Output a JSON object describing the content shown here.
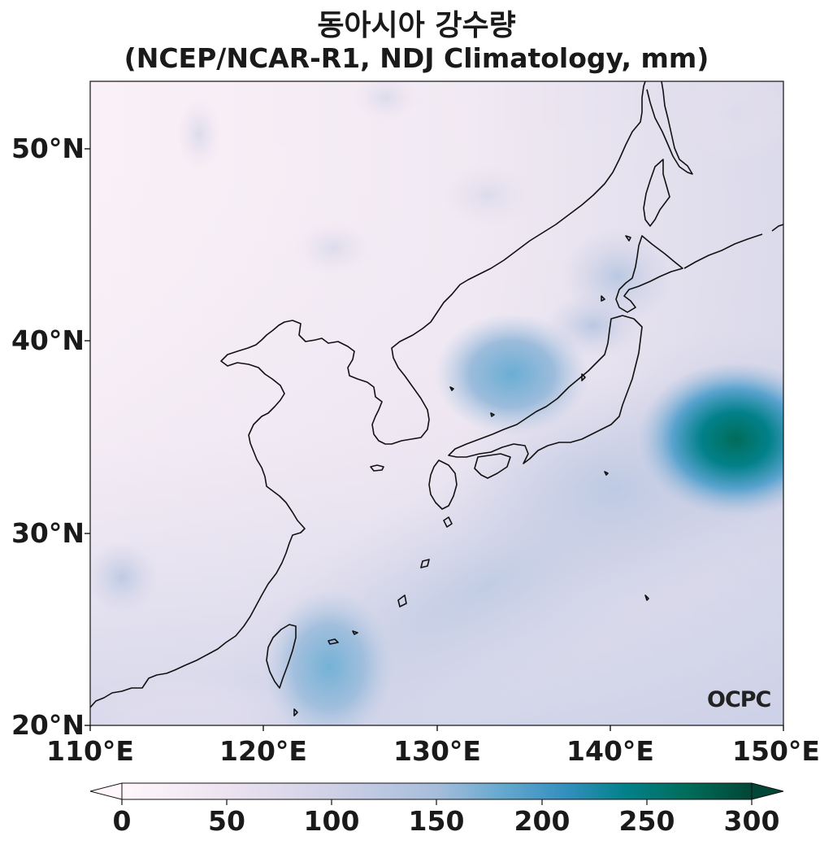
{
  "title": "동아시아 강수량",
  "subtitle": "(NCEP/NCAR-R1, NDJ Climatology, mm)",
  "map": {
    "extent": {
      "lon": [
        110,
        150
      ],
      "lat": [
        20,
        53.5
      ]
    },
    "lat_ticks": [
      {
        "value": 20,
        "label": "20°N"
      },
      {
        "value": 30,
        "label": "30°N"
      },
      {
        "value": 40,
        "label": "40°N"
      },
      {
        "value": 50,
        "label": "50°N"
      }
    ],
    "lon_ticks": [
      {
        "value": 110,
        "label": "110°E"
      },
      {
        "value": 120,
        "label": "120°E"
      },
      {
        "value": 130,
        "label": "130°E"
      },
      {
        "value": 140,
        "label": "140°E"
      },
      {
        "value": 150,
        "label": "150°E"
      }
    ],
    "precip_features": [
      {
        "name": "kuroshio-maximum",
        "lon": 147.5,
        "lat": 35,
        "value_mm": 300
      },
      {
        "name": "east-sea-maximum",
        "lon": 134.5,
        "lat": 38,
        "value_mm": 150
      },
      {
        "name": "taiwan-east-maximum",
        "lon": 124,
        "lat": 23.5,
        "value_mm": 150
      },
      {
        "name": "south-china-minor",
        "lon": 112.5,
        "lat": 27.5,
        "value_mm": 100
      }
    ]
  },
  "colorbar": {
    "min": 0,
    "max": 300,
    "extend": "both",
    "colors": [
      "#fff7fb",
      "#ece2f0",
      "#d0d1e6",
      "#a6bddb",
      "#67a9cf",
      "#3690c0",
      "#02818a",
      "#016c59",
      "#014636"
    ],
    "ticks": [
      {
        "value": 0,
        "label": "0"
      },
      {
        "value": 50,
        "label": "50"
      },
      {
        "value": 100,
        "label": "100"
      },
      {
        "value": 150,
        "label": "150"
      },
      {
        "value": 200,
        "label": "200"
      },
      {
        "value": 250,
        "label": "250"
      },
      {
        "value": 300,
        "label": "300"
      }
    ]
  },
  "watermark": "OCPC"
}
